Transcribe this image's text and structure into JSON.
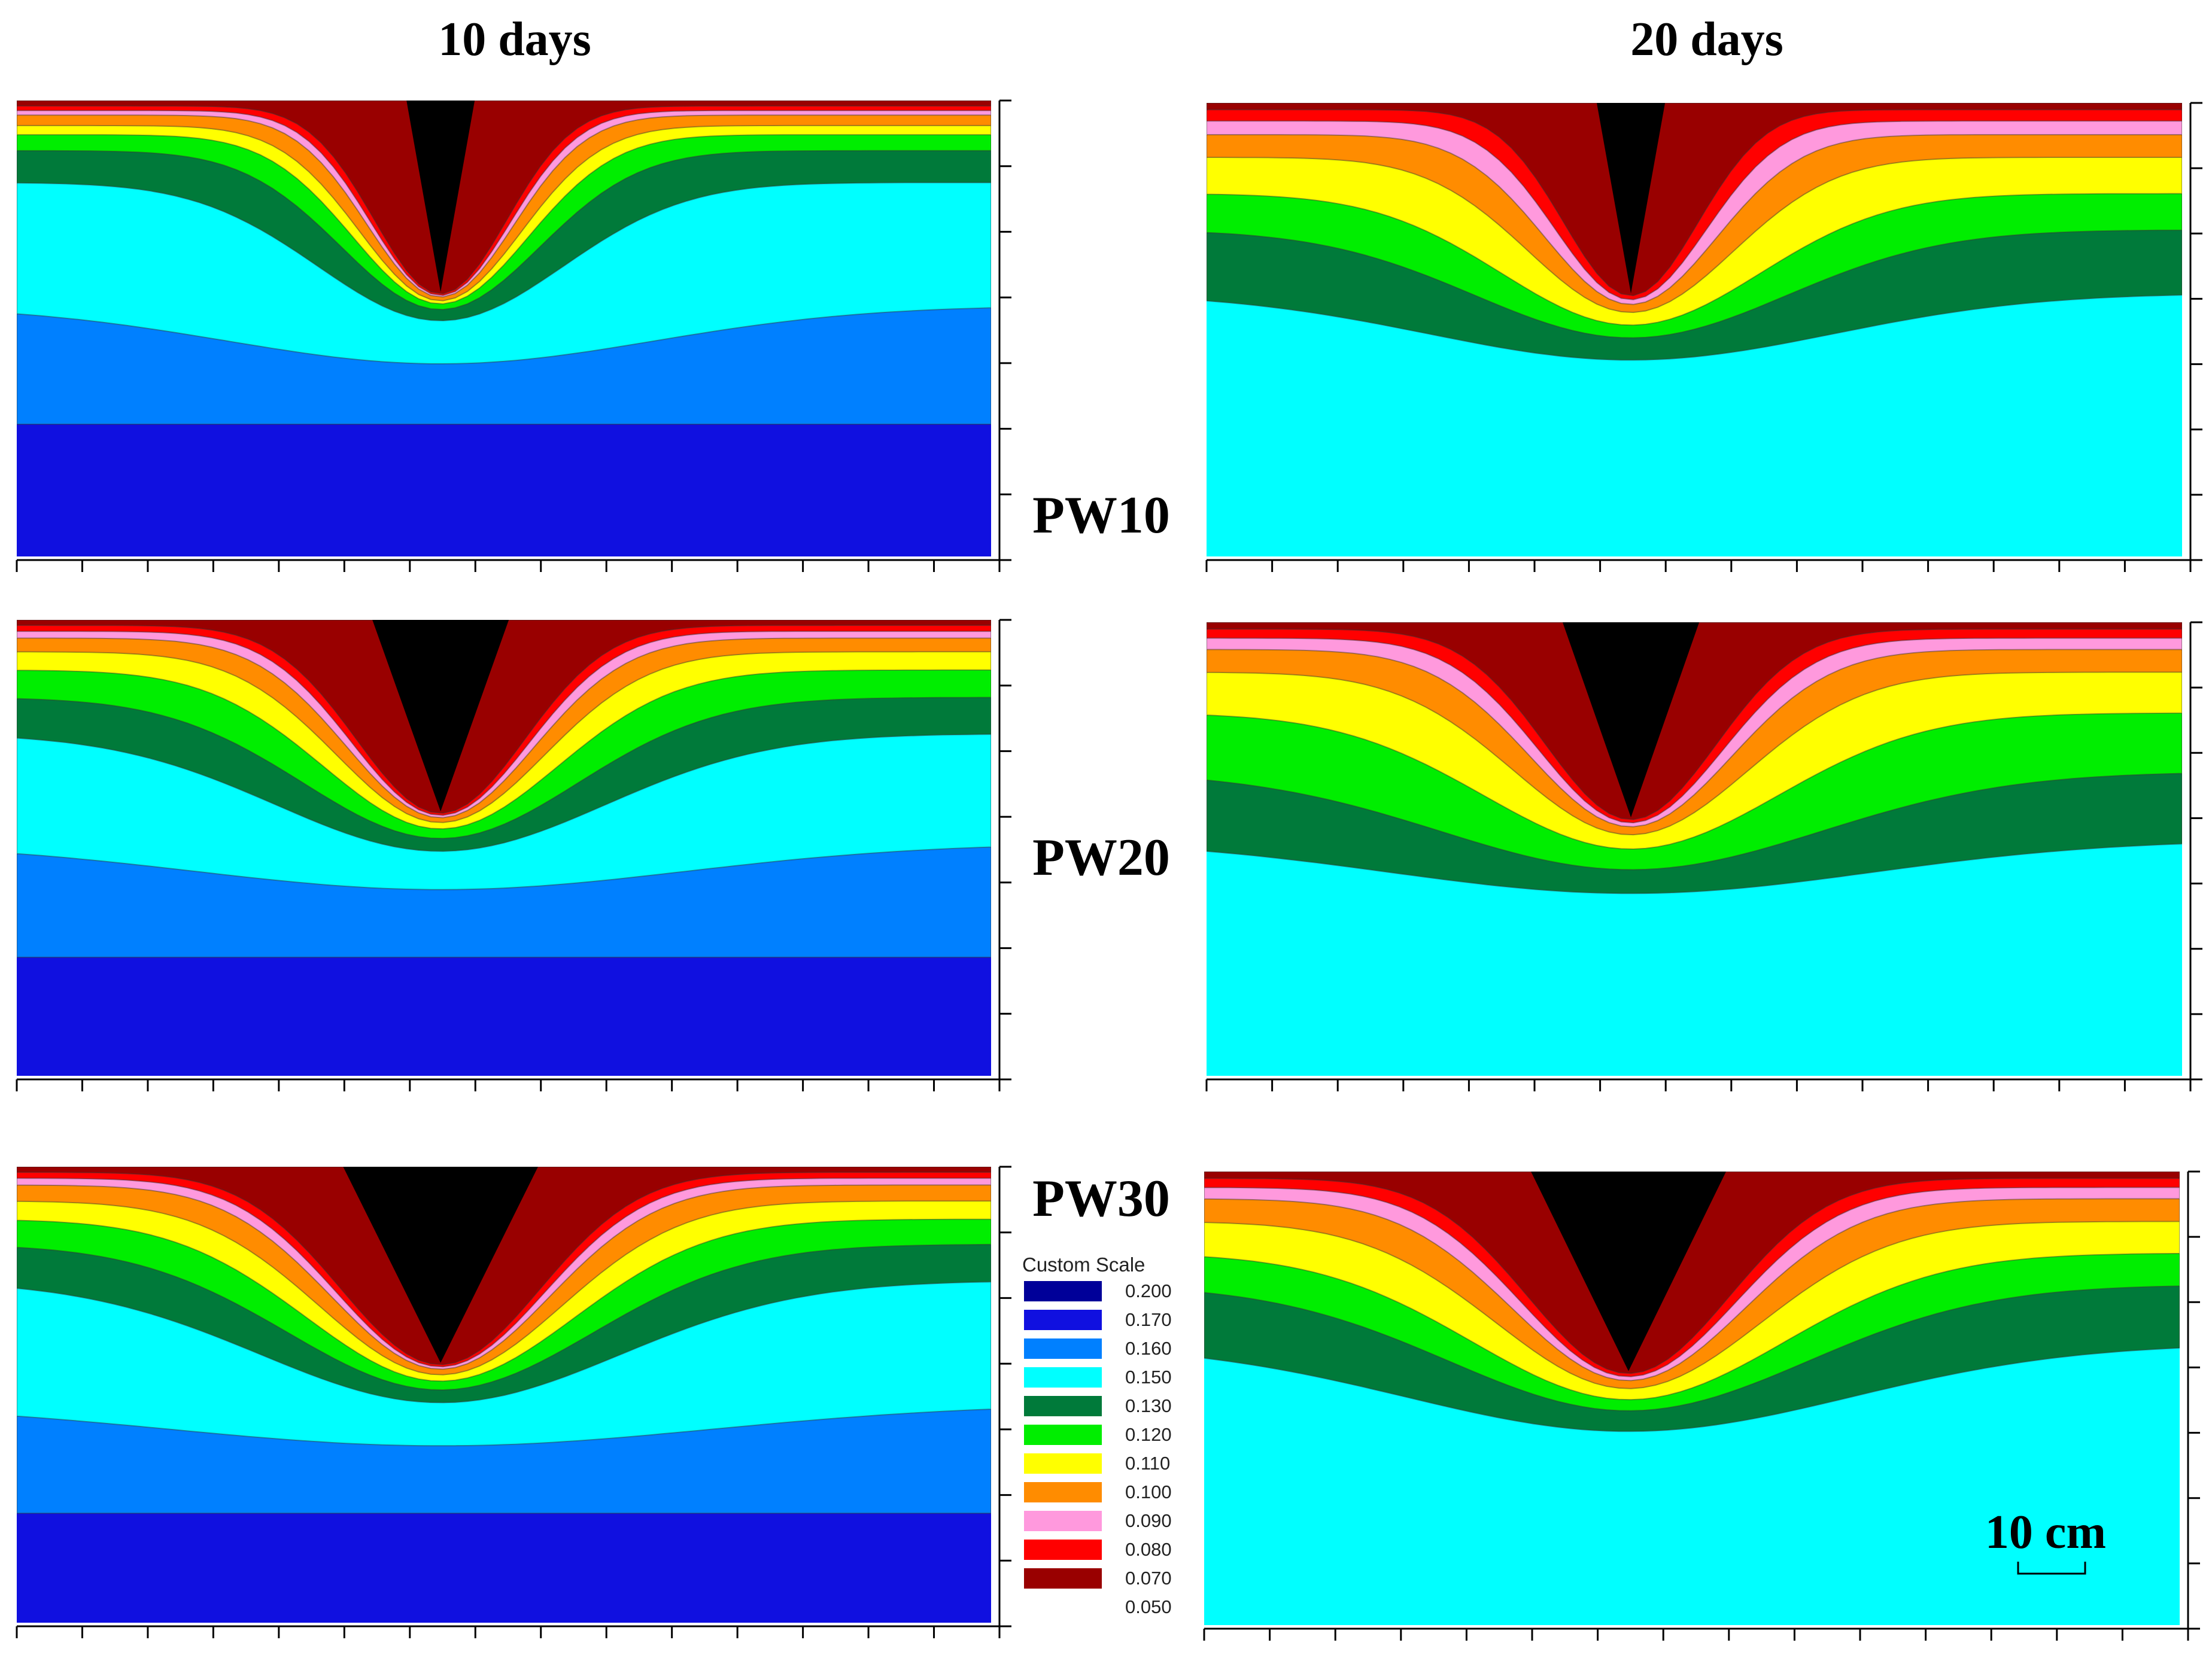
{
  "figure": {
    "column_titles": [
      "10 days",
      "20 days"
    ],
    "row_labels": [
      "PW10",
      "PW20",
      "PW30"
    ],
    "scale_bar_label": "10 cm"
  },
  "legend": {
    "title": "Custom Scale",
    "entries": [
      {
        "value": "0.200",
        "color": "#000099"
      },
      {
        "value": "0.170",
        "color": "#1010e0"
      },
      {
        "value": "0.160",
        "color": "#0080ff"
      },
      {
        "value": "0.150",
        "color": "#00ffff"
      },
      {
        "value": "0.130",
        "color": "#007a3a"
      },
      {
        "value": "0.120",
        "color": "#00ee00"
      },
      {
        "value": "0.110",
        "color": "#ffff00"
      },
      {
        "value": "0.100",
        "color": "#ff8c00"
      },
      {
        "value": "0.090",
        "color": "#ff99dd"
      },
      {
        "value": "0.080",
        "color": "#ff0000"
      },
      {
        "value": "0.070",
        "color": "#990000"
      },
      {
        "value": "0.050",
        "color": ""
      }
    ]
  },
  "panels": [
    {
      "row": "PW10",
      "column": "10 days",
      "furrow_depth": 0.42,
      "furrow_half_width": 0.035,
      "top_layers": [
        "#990000",
        "#ff0000",
        "#ff99dd",
        "#ff8c00",
        "#ffff00",
        "#00ee00",
        "#007a3a",
        "#00ffff",
        "#0080ff",
        "#1010e0"
      ],
      "layer_depths": [
        0.012,
        0.022,
        0.032,
        0.055,
        0.075,
        0.11,
        0.18,
        0.45,
        0.71
      ]
    },
    {
      "row": "PW10",
      "column": "20 days",
      "furrow_depth": 0.42,
      "furrow_half_width": 0.035,
      "top_layers": [
        "#990000",
        "#ff0000",
        "#ff99dd",
        "#ff8c00",
        "#ffff00",
        "#00ee00",
        "#007a3a",
        "#00ffff"
      ],
      "layer_depths": [
        0.015,
        0.04,
        0.07,
        0.12,
        0.2,
        0.28,
        0.42
      ]
    },
    {
      "row": "PW20",
      "column": "10 days",
      "furrow_depth": 0.42,
      "furrow_half_width": 0.07,
      "top_layers": [
        "#990000",
        "#ff0000",
        "#ff99dd",
        "#ff8c00",
        "#ffff00",
        "#00ee00",
        "#007a3a",
        "#00ffff",
        "#0080ff",
        "#1010e0"
      ],
      "layer_depths": [
        0.012,
        0.025,
        0.04,
        0.07,
        0.11,
        0.17,
        0.25,
        0.49,
        0.74
      ]
    },
    {
      "row": "PW20",
      "column": "20 days",
      "furrow_depth": 0.43,
      "furrow_half_width": 0.07,
      "top_layers": [
        "#990000",
        "#ff0000",
        "#ff99dd",
        "#ff8c00",
        "#ffff00",
        "#00ee00",
        "#007a3a",
        "#00ffff"
      ],
      "layer_depths": [
        0.015,
        0.035,
        0.06,
        0.11,
        0.2,
        0.33,
        0.48
      ]
    },
    {
      "row": "PW30",
      "column": "10 days",
      "furrow_depth": 0.43,
      "furrow_half_width": 0.1,
      "top_layers": [
        "#990000",
        "#ff0000",
        "#ff99dd",
        "#ff8c00",
        "#ffff00",
        "#00ee00",
        "#007a3a",
        "#00ffff",
        "#0080ff",
        "#1010e0"
      ],
      "layer_depths": [
        0.012,
        0.025,
        0.04,
        0.075,
        0.115,
        0.17,
        0.25,
        0.52,
        0.76
      ]
    },
    {
      "row": "PW30",
      "column": "20 days",
      "furrow_depth": 0.44,
      "furrow_half_width": 0.1,
      "top_layers": [
        "#990000",
        "#ff0000",
        "#ff99dd",
        "#ff8c00",
        "#ffff00",
        "#00ee00",
        "#007a3a",
        "#00ffff"
      ],
      "layer_depths": [
        0.015,
        0.035,
        0.06,
        0.11,
        0.18,
        0.25,
        0.38
      ]
    }
  ]
}
